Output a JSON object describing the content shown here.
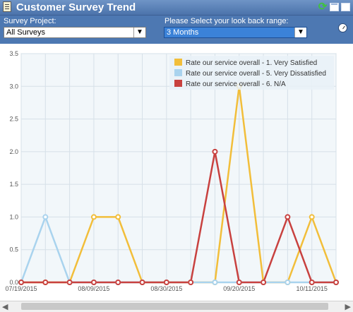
{
  "window": {
    "title": "Customer Survey Trend",
    "icons": [
      "document-icon",
      "refresh-icon",
      "restore-icon",
      "close-icon"
    ]
  },
  "filters": {
    "survey_label": "Survey Project:",
    "survey_value": "All Surveys",
    "range_label": "Please Select your look back range:",
    "range_value": "3 Months"
  },
  "chart_data": {
    "type": "line",
    "x": [
      "07/19/2015",
      "07/26/2015",
      "08/02/2015",
      "08/09/2015",
      "08/16/2015",
      "08/23/2015",
      "08/30/2015",
      "09/06/2015",
      "09/13/2015",
      "09/20/2015",
      "09/27/2015",
      "10/04/2015",
      "10/11/2015",
      "10/18/2015"
    ],
    "x_tick_labels": [
      "07/19/2015",
      "08/09/2015",
      "08/30/2015",
      "09/20/2015",
      "10/11/2015"
    ],
    "y_tick_labels": [
      "0.0",
      "0.5",
      "1.0",
      "1.5",
      "2.0",
      "2.5",
      "3.0",
      "3.5"
    ],
    "ylim": [
      0,
      3.5
    ],
    "grid": true,
    "legend_position": "top-right",
    "series": [
      {
        "name": "Rate our service overall - 1. Very Satisfied",
        "color": "#f2be3a",
        "values": [
          0,
          0,
          0,
          1,
          1,
          0,
          0,
          0,
          0,
          3,
          0,
          0,
          1,
          0
        ]
      },
      {
        "name": "Rate our service overall - 5. Very Dissatisfied",
        "color": "#a9d3ee",
        "values": [
          0,
          1,
          0,
          0,
          0,
          0,
          0,
          0,
          0,
          0,
          0,
          0,
          0,
          0
        ]
      },
      {
        "name": "Rate our service overall - 6. N/A",
        "color": "#c8413f",
        "values": [
          0,
          0,
          0,
          0,
          0,
          0,
          0,
          0,
          2,
          0,
          0,
          1,
          0,
          0
        ]
      }
    ]
  }
}
